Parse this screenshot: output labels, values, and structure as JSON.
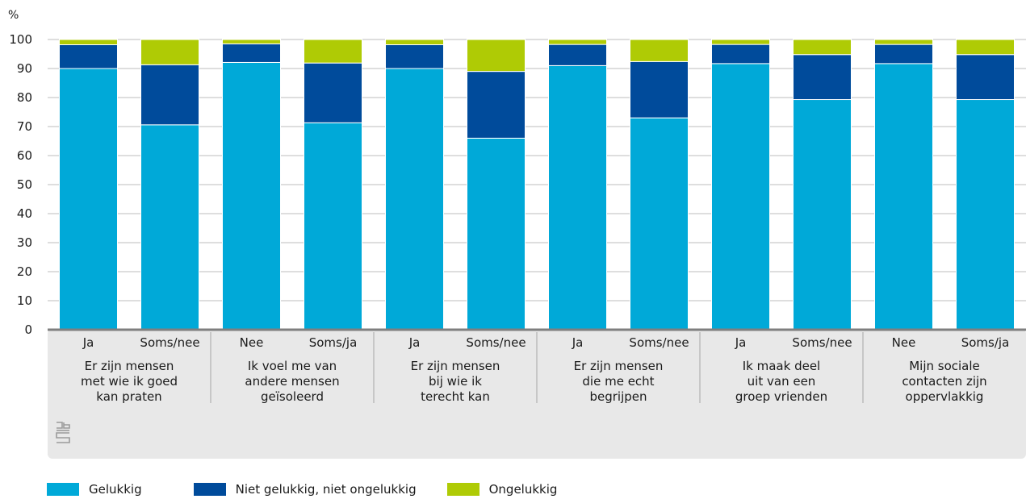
{
  "chart_data": {
    "type": "bar",
    "stacked": true,
    "unit_label": "%",
    "ylim": [
      0,
      100
    ],
    "yticks": [
      0,
      10,
      20,
      30,
      40,
      50,
      60,
      70,
      80,
      90,
      100
    ],
    "grid": true,
    "groups": [
      {
        "label": [
          "Er zijn mensen",
          "met wie ik goed",
          "kan praten"
        ],
        "categories": [
          "Ja",
          "Soms/nee"
        ]
      },
      {
        "label": [
          "Ik voel me van",
          "andere mensen",
          "geïsoleerd"
        ],
        "categories": [
          "Nee",
          "Soms/ja"
        ]
      },
      {
        "label": [
          "Er zijn mensen",
          "bij wie ik",
          "terecht kan"
        ],
        "categories": [
          "Ja",
          "Soms/nee"
        ]
      },
      {
        "label": [
          "Er zijn mensen",
          "die me echt",
          "begrijpen"
        ],
        "categories": [
          "Ja",
          "Soms/nee"
        ]
      },
      {
        "label": [
          "Ik maak deel",
          "uit van een",
          "groep vrienden"
        ],
        "categories": [
          "Ja",
          "Soms/nee"
        ]
      },
      {
        "label": [
          "Mijn sociale",
          "contacten zijn",
          "oppervlakkig"
        ],
        "categories": [
          "Nee",
          "Soms/ja"
        ]
      }
    ],
    "series": [
      {
        "name": "Gelukkig",
        "color": "#00a9d8",
        "values": [
          90,
          70.6,
          92.1,
          71.3,
          90,
          66,
          91,
          73,
          91.7,
          79.3,
          91.7,
          79.3
        ]
      },
      {
        "name": "Niet gelukkig, niet ongelukkig",
        "color": "#004b9b",
        "values": [
          8.2,
          20.7,
          6.4,
          20.6,
          8.2,
          23,
          7.3,
          19.4,
          6.6,
          15.5,
          6.6,
          15.5
        ]
      },
      {
        "name": "Ongelukkig",
        "color": "#afcb05",
        "values": [
          1.8,
          8.7,
          1.5,
          8.1,
          1.8,
          11,
          1.7,
          7.6,
          1.7,
          5.2,
          1.7,
          5.2
        ]
      }
    ]
  },
  "legend": [
    {
      "label": "Gelukkig",
      "color": "#00a9d8"
    },
    {
      "label": "Niet gelukkig, niet ongelukkig",
      "color": "#004b9b"
    },
    {
      "label": "Ongelukkig",
      "color": "#afcb05"
    }
  ],
  "logo": {
    "icon": "cbs-logo-icon",
    "text": "cbs"
  }
}
